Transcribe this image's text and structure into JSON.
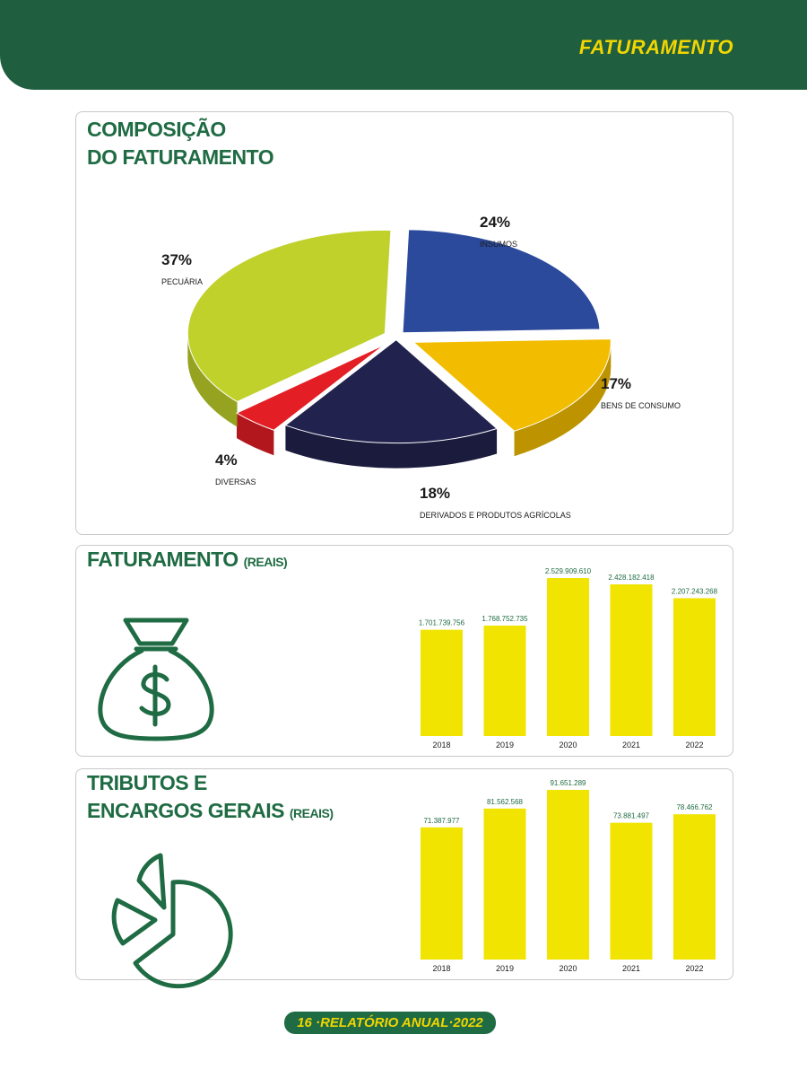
{
  "header": {
    "title": "FATURAMENTO"
  },
  "section1": {
    "title_line1": "COMPOSIÇÃO",
    "title_line2": "DO FATURAMENTO"
  },
  "section2": {
    "title": "FATURAMENTO",
    "unit": "(REAIS)"
  },
  "section3": {
    "title_line1": "TRIBUTOS E",
    "title_line2": "ENCARGOS GERAIS",
    "unit": "(REAIS)"
  },
  "footer": {
    "page": "16",
    "label": "·RELATÓRIO ANUAL·2022"
  },
  "icons": {
    "section2": "money-bag-dollar-icon",
    "section3": "pie-chart-outline-icon"
  },
  "chart_data": [
    {
      "type": "pie",
      "title": "COMPOSIÇÃO DO FATURAMENTO",
      "slices": [
        {
          "label": "INSUMOS",
          "value": 24,
          "percent_label": "24%",
          "color": "#2b4a9c"
        },
        {
          "label": "BENS DE CONSUMO",
          "value": 17,
          "percent_label": "17%",
          "color": "#f2bd00"
        },
        {
          "label": "DERIVADOS E PRODUTOS AGRÍCOLAS",
          "value": 18,
          "percent_label": "18%",
          "color": "#22224f"
        },
        {
          "label": "DIVERSAS",
          "value": 4,
          "percent_label": "4%",
          "color": "#e31e24"
        },
        {
          "label": "PECUÁRIA",
          "value": 37,
          "percent_label": "37%",
          "color": "#bfd12a"
        }
      ]
    },
    {
      "type": "bar",
      "title": "FATURAMENTO (REAIS)",
      "categories": [
        "2018",
        "2019",
        "2020",
        "2021",
        "2022"
      ],
      "values": [
        1701739756,
        1768752735,
        2529909610,
        2428182418,
        2207243268
      ],
      "value_labels": [
        "1.701.739.756",
        "1.768.752.735",
        "2.529.909.610",
        "2.428.182.418",
        "2.207.243.268"
      ],
      "bar_color": "#f0e400",
      "ylim": [
        0,
        2529909610
      ]
    },
    {
      "type": "bar",
      "title": "TRIBUTOS E ENCARGOS GERAIS (REAIS)",
      "categories": [
        "2018",
        "2019",
        "2020",
        "2021",
        "2022"
      ],
      "values": [
        71387977,
        81562568,
        91651289,
        73881497,
        78466762
      ],
      "value_labels": [
        "71.387.977",
        "81.562.568",
        "91.651.289",
        "73.881.497",
        "78.466.762"
      ],
      "bar_color": "#f0e400",
      "ylim": [
        0,
        91651289
      ]
    }
  ]
}
